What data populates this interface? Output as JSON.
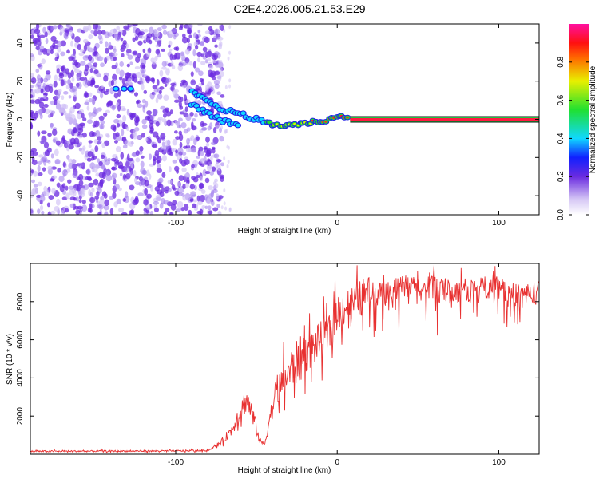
{
  "title": "C2E4.2026.005.21.53.E29",
  "chart_data": [
    {
      "type": "heatmap",
      "title": "C2E4.2026.005.21.53.E29",
      "xlabel": "Height of straight line (km)",
      "ylabel": "Frequency (Hz)",
      "xlim": [
        -190,
        125
      ],
      "ylim": [
        -50,
        50
      ],
      "x_ticks": [
        -100,
        0,
        100
      ],
      "y_ticks": [
        -40,
        -20,
        0,
        20,
        40
      ],
      "colorbar": {
        "label": "Normalized spectral amplitude",
        "range": [
          0,
          1
        ],
        "ticks": [
          0.0,
          0.2,
          0.4,
          0.6,
          0.8
        ]
      },
      "ridge": {
        "description_points_x": [
          -90,
          -80,
          -70,
          -60,
          -50,
          -40,
          -30,
          -20,
          -10,
          0,
          5,
          125
        ],
        "description_points_y": [
          14,
          9,
          5,
          3,
          0,
          -3,
          -3,
          -2,
          -1,
          1,
          2,
          0
        ]
      },
      "noise_region_x": [
        -190,
        -75
      ],
      "steady_line": {
        "x_range": [
          8,
          125
        ],
        "y": 0
      }
    },
    {
      "type": "line",
      "xlabel": "Height of straight line (km)",
      "ylabel": "SNR (10 * v/v)",
      "xlim": [
        -190,
        125
      ],
      "ylim": [
        0,
        10000
      ],
      "x_ticks": [
        -100,
        0,
        100
      ],
      "y_ticks": [
        2000,
        4000,
        6000,
        8000
      ],
      "series": [
        {
          "name": "SNR",
          "color": "#e83030",
          "x": [
            -190,
            -150,
            -100,
            -80,
            -72,
            -65,
            -60,
            -56,
            -52,
            -48,
            -45,
            -42,
            -38,
            -34,
            -30,
            -25,
            -20,
            -15,
            -10,
            -5,
            0,
            5,
            10,
            15,
            20,
            25,
            30,
            35,
            40,
            45,
            50,
            55,
            60,
            70,
            80,
            90,
            100,
            110,
            120,
            125
          ],
          "y": [
            150,
            160,
            170,
            200,
            600,
            1300,
            2300,
            2900,
            2000,
            700,
            500,
            1800,
            3200,
            3700,
            4300,
            4800,
            5200,
            5600,
            6000,
            6300,
            7500,
            7700,
            7900,
            8200,
            8400,
            8500,
            8500,
            8600,
            8700,
            8800,
            8700,
            8600,
            8800,
            8500,
            8600,
            8700,
            8800,
            8300,
            8400,
            8500
          ]
        }
      ]
    }
  ]
}
